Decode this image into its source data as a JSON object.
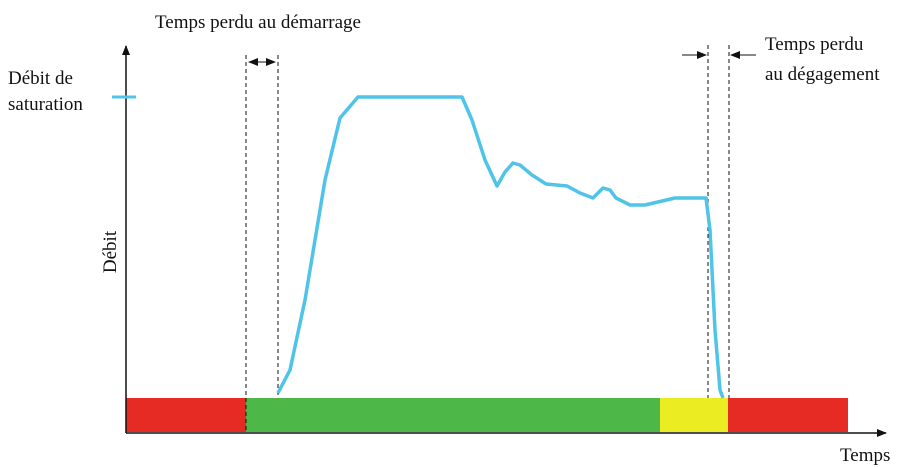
{
  "annotations": {
    "startup_loss": "Temps perdu au démarrage",
    "clearance_loss": [
      "Temps perdu",
      "au dégagement"
    ],
    "saturation_flow": [
      "Débit de",
      "saturation"
    ]
  },
  "axes": {
    "y_label": "Débit",
    "x_label": "Temps"
  }
}
